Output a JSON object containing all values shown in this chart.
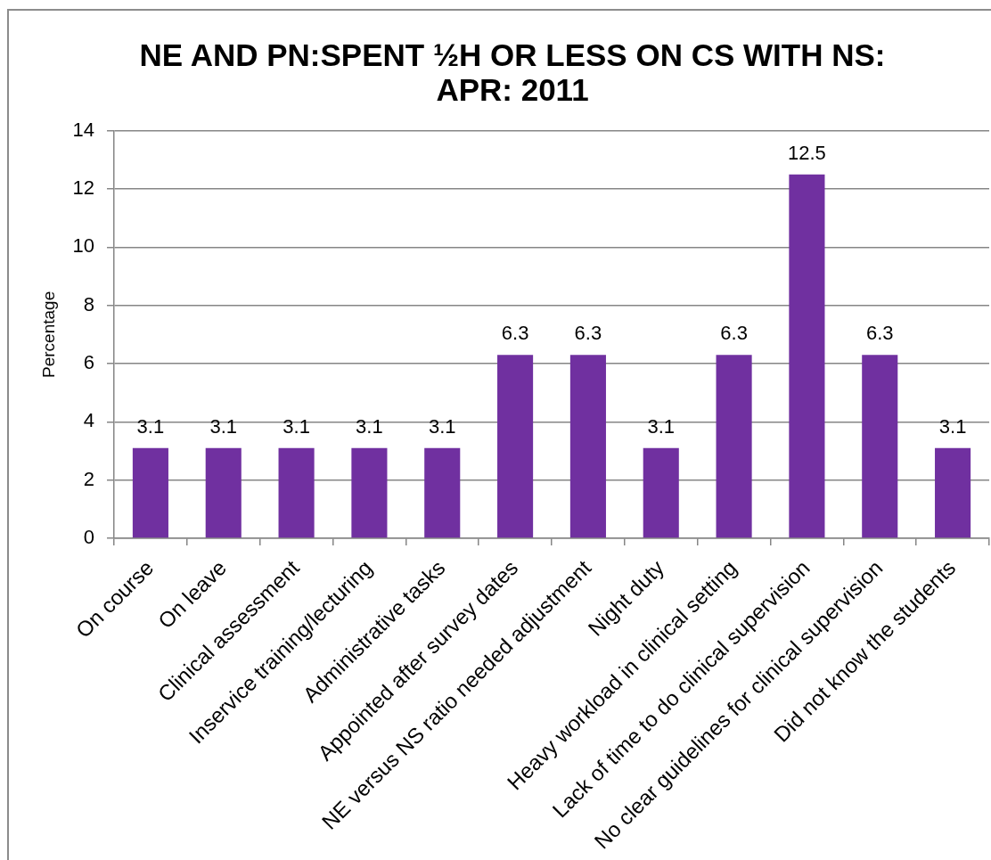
{
  "chart_data": {
    "type": "bar",
    "title": "NE AND PN:SPENT ½H OR LESS ON CS WITH NS: APR: 2011",
    "ylabel": "Percentage",
    "categories": [
      "On course",
      "On leave",
      "Clinical assessment",
      "Inservice training/lecturing",
      "Administrative tasks",
      "Appointed after survey dates",
      "NE versus NS ratio needed adjustment",
      "Night duty",
      "Heavy workload in clinical setting",
      "Lack of time to do clinical supervision",
      "No clear guidelines for clinical supervision",
      "Did not know the students"
    ],
    "values": [
      3.1,
      3.1,
      3.1,
      3.1,
      3.1,
      6.3,
      6.3,
      3.1,
      6.3,
      12.5,
      6.3,
      3.1
    ],
    "color": "#7030a0",
    "ylim": [
      0,
      14
    ],
    "yticks": [
      0,
      2,
      4,
      6,
      8,
      10,
      12,
      14
    ],
    "grid": "y",
    "data_labels": true
  }
}
